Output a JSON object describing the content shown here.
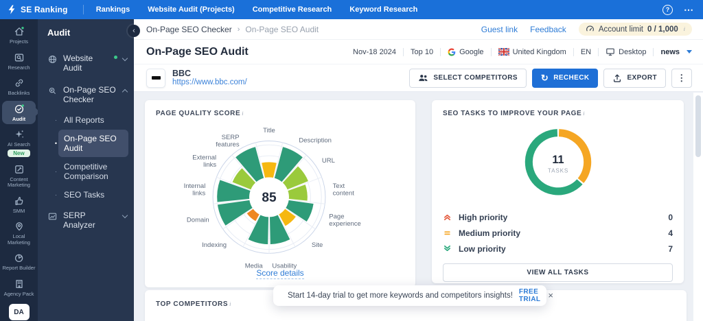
{
  "icons": {
    "chevron_right_small": "›",
    "collapse_left": "‹",
    "kebab_vertical": "⋮",
    "more_horizontal": "⋯",
    "help": "?",
    "close": "×",
    "recheck_glyph": "↻",
    "info": "i",
    "bullet": "•",
    "sub_marker": "·"
  },
  "topbar": {
    "brand": "SE Ranking",
    "nav": [
      {
        "label": "Rankings"
      },
      {
        "label": "Website Audit (Projects)"
      },
      {
        "label": "Competitive Research"
      },
      {
        "label": "Keyword Research"
      }
    ]
  },
  "rail": {
    "items": [
      {
        "label": "Projects"
      },
      {
        "label": "Research"
      },
      {
        "label": "Backlinks"
      },
      {
        "label": "Audit"
      },
      {
        "label": "AI Search",
        "badge": "New"
      },
      {
        "label": "Content Marketing"
      },
      {
        "label": "SMM"
      },
      {
        "label": "Local Marketing"
      },
      {
        "label": "Report Builder"
      },
      {
        "label": "Agency Pack"
      },
      {
        "label": "DA"
      }
    ]
  },
  "sidebar": {
    "title": "Audit",
    "website_audit": "Website Audit",
    "onpage_checker": "On-Page SEO Checker",
    "children": [
      "All Reports",
      "On-Page SEO Audit",
      "Competitive Comparison",
      "SEO Tasks"
    ],
    "serp_analyzer": "SERP Analyzer"
  },
  "breadcrumb": {
    "parent": "On-Page SEO Checker",
    "current": "On-Page SEO Audit",
    "guest_link": "Guest link",
    "feedback": "Feedback",
    "account_limit_label": "Account limit",
    "account_limit_value": "0 / 1,000"
  },
  "header": {
    "title": "On-Page SEO Audit",
    "date": "Nov-18 2024",
    "depth": "Top 10",
    "search_engine": "Google",
    "location": "United Kingdom",
    "language": "EN",
    "device": "Desktop",
    "keyword": "news"
  },
  "target": {
    "name": "BBC",
    "url": "https://www.bbc.com/"
  },
  "toolbar": {
    "select_competitors": "SELECT COMPETITORS",
    "recheck": "RECHECK",
    "export": "EXPORT"
  },
  "quality_card": {
    "title": "PAGE QUALITY SCORE",
    "link": "Score details"
  },
  "tasks_card": {
    "title": "SEO TASKS TO IMPROVE YOUR PAGE",
    "button": "VIEW ALL TASKS"
  },
  "competitors_card": {
    "title": "TOP COMPETITORS"
  },
  "toast": {
    "message": "Start 14-day trial to get more keywords and competitors insights!",
    "cta": "FREE TRIAL"
  },
  "colors": {
    "brand_blue": "#1a70d9",
    "accent_blue": "#2e7cd6",
    "green_dark": "#2e9b78",
    "green_light": "#9aca3c",
    "yellow": "#f6b811",
    "orange": "#ee8722",
    "donut_green": "#2aa87c",
    "donut_orange": "#f5a623",
    "high_red": "#e4593c"
  },
  "chart_data": [
    {
      "type": "radial-sector",
      "title": "PAGE QUALITY SCORE",
      "center_score": 85,
      "scale": [
        0,
        100
      ],
      "sectors": [
        {
          "label": "Title",
          "value": 48,
          "color": "#f6b811"
        },
        {
          "label": "Description",
          "value": 100,
          "color": "#2e9b78"
        },
        {
          "label": "URL",
          "value": 70,
          "color": "#9aca3c"
        },
        {
          "label": "Text content",
          "value": 58,
          "color": "#9aca3c"
        },
        {
          "label": "Page experience",
          "value": 78,
          "color": "#2e9b78"
        },
        {
          "label": "Site",
          "value": 42,
          "color": "#f6b811"
        },
        {
          "label": "Usability",
          "value": 85,
          "color": "#2e9b78"
        },
        {
          "label": "Media",
          "value": 85,
          "color": "#2e9b78"
        },
        {
          "label": "Indexing",
          "value": 25,
          "color": "#ee8722"
        },
        {
          "label": "Domain",
          "value": 100,
          "color": "#2e9b78"
        },
        {
          "label": "Internal links",
          "value": 100,
          "color": "#2e9b78"
        },
        {
          "label": "External links",
          "value": 62,
          "color": "#9aca3c"
        },
        {
          "label": "SERP features",
          "value": 100,
          "color": "#2e9b78"
        }
      ]
    },
    {
      "type": "donut",
      "title": "SEO TASKS TO IMPROVE YOUR PAGE",
      "center_value": "11",
      "center_label": "TASKS",
      "segments": [
        {
          "label": "Medium priority",
          "value": 4,
          "color": "#f5a623"
        },
        {
          "label": "Low priority",
          "value": 7,
          "color": "#2aa87c"
        }
      ],
      "legend": [
        {
          "label": "High priority",
          "value": "0",
          "level": "high"
        },
        {
          "label": "Medium priority",
          "value": "4",
          "level": "medium"
        },
        {
          "label": "Low priority",
          "value": "7",
          "level": "low"
        }
      ]
    }
  ]
}
